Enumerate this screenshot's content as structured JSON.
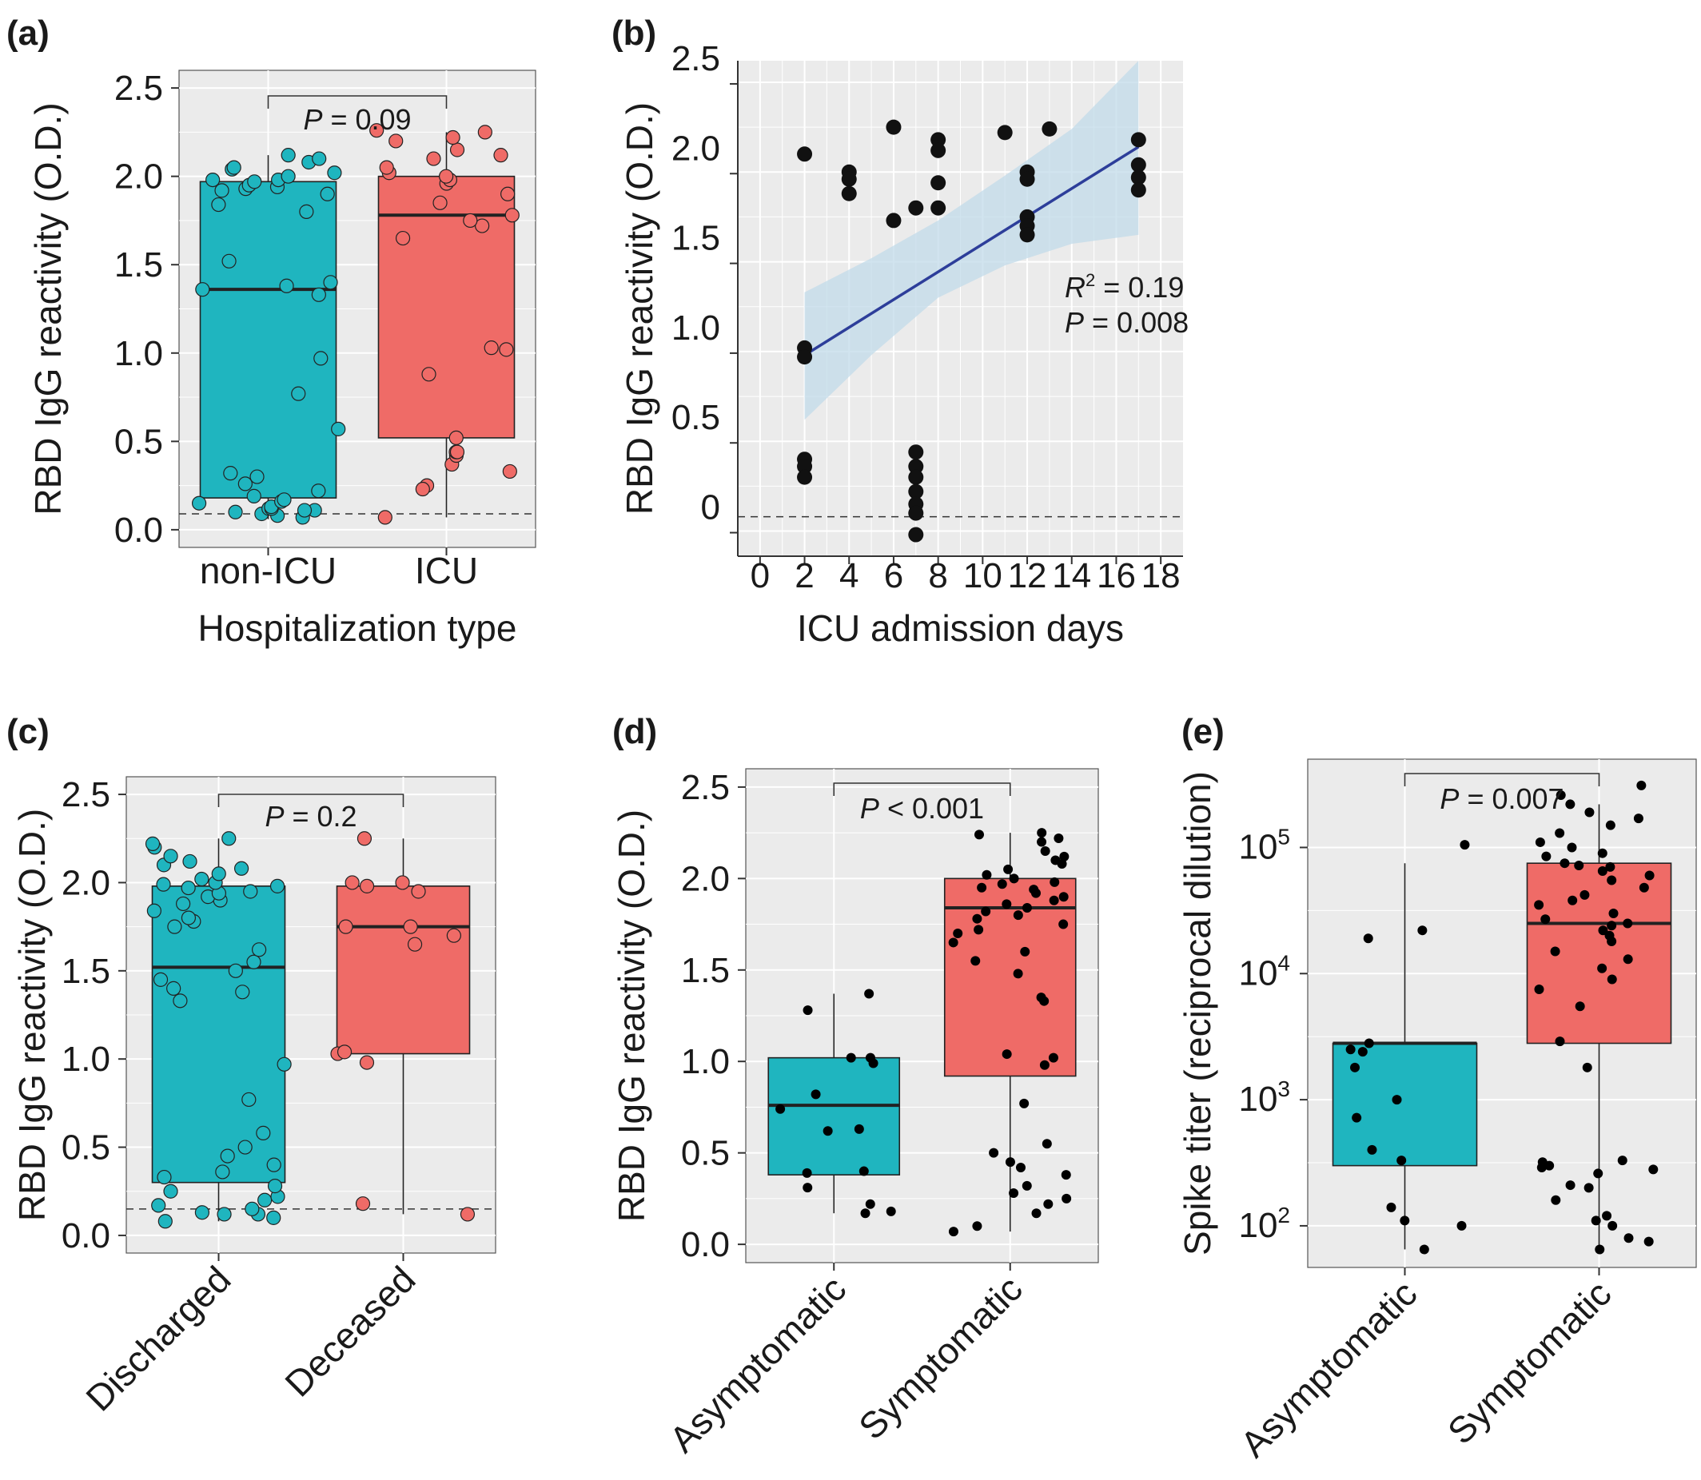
{
  "chart_data": [
    {
      "panel": "(a)",
      "type": "box",
      "ylabel": "RBD IgG reactivity (O.D.)",
      "xlabel": "Hospitalization type",
      "ylim": [
        -0.1,
        2.6
      ],
      "yticks": [
        "0.0",
        "0.5",
        "1.0",
        "1.5",
        "2.0",
        "2.5"
      ],
      "categories": [
        "non-ICU",
        "ICU"
      ],
      "colors": [
        "#1fb5bf",
        "#ef6b67"
      ],
      "boxes": [
        {
          "q1": 0.18,
          "median": 1.36,
          "q3": 1.97,
          "whisker_low": 0.06,
          "whisker_high": 2.12
        },
        {
          "q1": 0.52,
          "median": 1.78,
          "q3": 2.0,
          "whisker_low": 0.07,
          "whisker_high": 2.25
        }
      ],
      "points": [
        [
          0.07,
          0.08,
          0.09,
          0.1,
          0.11,
          0.11,
          0.12,
          0.12,
          0.13,
          0.15,
          0.16,
          0.17,
          0.19,
          0.22,
          0.26,
          0.3,
          0.32,
          0.57,
          0.77,
          0.97,
          1.33,
          1.36,
          1.38,
          1.4,
          1.52,
          1.8,
          1.84,
          1.9,
          1.92,
          1.93,
          1.94,
          1.95,
          1.97,
          1.98,
          1.98,
          2.0,
          2.02,
          2.04,
          2.05,
          2.08,
          2.1,
          2.12
        ],
        [
          0.07,
          0.25,
          0.23,
          0.33,
          0.37,
          0.42,
          0.44,
          0.44,
          0.52,
          0.88,
          1.02,
          1.03,
          1.65,
          1.72,
          1.75,
          1.78,
          1.85,
          1.9,
          1.96,
          1.98,
          2.0,
          2.02,
          2.05,
          2.1,
          2.12,
          2.15,
          2.2,
          2.22,
          2.25,
          2.26
        ]
      ],
      "cutoff": 0.09,
      "annotation": "= 0.09",
      "annotation_p": "P"
    },
    {
      "panel": "(b)",
      "type": "scatter",
      "ylabel": "RBD IgG reactivity (O.D.)",
      "xlabel": "ICU admission days",
      "xlim": [
        -1,
        19
      ],
      "ylim": [
        -0.14,
        2.62
      ],
      "xticks": [
        "0",
        "2",
        "4",
        "6",
        "8",
        "10",
        "12",
        "14",
        "16",
        "18"
      ],
      "yticks": [
        "0",
        "0.5",
        "1.0",
        "1.5",
        "2.0",
        "2.5"
      ],
      "points": [
        [
          2,
          2.1
        ],
        [
          2,
          1.02
        ],
        [
          2,
          0.97
        ],
        [
          2,
          0.4
        ],
        [
          2,
          0.36
        ],
        [
          2,
          0.3
        ],
        [
          4,
          2.0
        ],
        [
          4,
          1.96
        ],
        [
          4,
          1.88
        ],
        [
          6,
          2.25
        ],
        [
          6,
          1.73
        ],
        [
          7,
          1.8
        ],
        [
          7,
          0.44
        ],
        [
          7,
          0.36
        ],
        [
          7,
          0.3
        ],
        [
          7,
          0.22
        ],
        [
          7,
          0.15
        ],
        [
          7,
          0.1
        ],
        [
          7,
          -0.02
        ],
        [
          8,
          2.18
        ],
        [
          8,
          2.12
        ],
        [
          8,
          1.94
        ],
        [
          8,
          1.8
        ],
        [
          11,
          2.22
        ],
        [
          12,
          2.0
        ],
        [
          12,
          1.96
        ],
        [
          12,
          1.75
        ],
        [
          12,
          1.7
        ],
        [
          12,
          1.65
        ],
        [
          13,
          2.24
        ],
        [
          17,
          2.18
        ],
        [
          17,
          2.04
        ],
        [
          17,
          1.97
        ],
        [
          17,
          1.9
        ]
      ],
      "fit": {
        "x0": 2,
        "y0": 0.98,
        "x1": 17,
        "y1": 2.14
      },
      "ci_upper": [
        [
          2,
          1.33
        ],
        [
          5,
          1.52
        ],
        [
          8,
          1.73
        ],
        [
          11,
          1.98
        ],
        [
          14,
          2.24
        ],
        [
          17,
          2.62
        ]
      ],
      "ci_lower": [
        [
          2,
          0.62
        ],
        [
          5,
          0.98
        ],
        [
          8,
          1.3
        ],
        [
          11,
          1.48
        ],
        [
          14,
          1.6
        ],
        [
          17,
          1.65
        ]
      ],
      "cutoff": 0.08,
      "annotation_r2_label": "R",
      "annotation_r2_sup": "2",
      "annotation_r2": "= 0.19",
      "annotation_p_label": "P",
      "annotation_p": "= 0.008",
      "colors": {
        "points": "#111111",
        "fit": "#2d3e9a",
        "ci": "#c2dbea"
      }
    },
    {
      "panel": "(c)",
      "type": "box",
      "ylabel": "RBD IgG reactivity (O.D.)",
      "xlabel": "",
      "ylim": [
        -0.1,
        2.6
      ],
      "yticks": [
        "0.0",
        "0.5",
        "1.0",
        "1.5",
        "2.0",
        "2.5"
      ],
      "categories": [
        "Discharged",
        "Deceased"
      ],
      "colors": [
        "#1fb5bf",
        "#ef6b67"
      ],
      "boxes": [
        {
          "q1": 0.3,
          "median": 1.52,
          "q3": 1.98,
          "whisker_low": 0.08,
          "whisker_high": 2.25
        },
        {
          "q1": 1.03,
          "median": 1.75,
          "q3": 1.98,
          "whisker_low": 0.12,
          "whisker_high": 2.25
        }
      ],
      "points": [
        [
          0.08,
          0.1,
          0.12,
          0.12,
          0.13,
          0.15,
          0.17,
          0.2,
          0.22,
          0.25,
          0.28,
          0.33,
          0.36,
          0.4,
          0.45,
          0.5,
          0.58,
          0.77,
          0.97,
          1.33,
          1.38,
          1.4,
          1.45,
          1.5,
          1.55,
          1.62,
          1.75,
          1.78,
          1.8,
          1.84,
          1.88,
          1.9,
          1.92,
          1.94,
          1.95,
          1.97,
          1.98,
          1.99,
          2.0,
          2.02,
          2.05,
          2.08,
          2.1,
          2.12,
          2.15,
          2.2,
          2.22,
          2.25
        ],
        [
          0.12,
          0.18,
          0.98,
          1.03,
          1.04,
          1.65,
          1.7,
          1.75,
          1.75,
          1.95,
          1.98,
          2.0,
          2.0,
          2.25
        ]
      ],
      "cutoff": 0.15,
      "annotation": "= 0.2",
      "annotation_p": "P"
    },
    {
      "panel": "(d)",
      "type": "box",
      "ylabel": "RBD IgG reactivity (O.D.)",
      "xlabel": "",
      "ylim": [
        -0.1,
        2.6
      ],
      "yticks": [
        "0.0",
        "0.5",
        "1.0",
        "1.5",
        "2.0",
        "2.5"
      ],
      "categories": [
        "Asymptomatic",
        "Symptomatic"
      ],
      "colors": [
        "#1fb5bf",
        "#ef6b67"
      ],
      "boxes": [
        {
          "q1": 0.38,
          "median": 0.76,
          "q3": 1.02,
          "whisker_low": 0.17,
          "whisker_high": 1.37
        },
        {
          "q1": 0.92,
          "median": 1.84,
          "q3": 2.0,
          "whisker_low": 0.07,
          "whisker_high": 2.25
        }
      ],
      "points": [
        [
          0.17,
          0.18,
          0.22,
          0.31,
          0.39,
          0.4,
          0.62,
          0.63,
          0.74,
          0.82,
          0.99,
          1.02,
          1.02,
          1.28,
          1.37
        ],
        [
          0.07,
          0.1,
          0.17,
          0.22,
          0.25,
          0.28,
          0.32,
          0.38,
          0.42,
          0.45,
          0.5,
          0.55,
          0.77,
          0.98,
          1.02,
          1.04,
          1.33,
          1.35,
          1.48,
          1.55,
          1.6,
          1.65,
          1.7,
          1.72,
          1.75,
          1.78,
          1.8,
          1.82,
          1.84,
          1.86,
          1.88,
          1.9,
          1.92,
          1.94,
          1.95,
          1.97,
          1.98,
          2.0,
          2.02,
          2.05,
          2.08,
          2.1,
          2.12,
          2.15,
          2.2,
          2.22,
          2.24,
          2.25
        ]
      ],
      "annotation": "< 0.001",
      "annotation_p": "P"
    },
    {
      "panel": "(e)",
      "type": "box",
      "scale": "log",
      "ylabel": "Spike titer (reciprocal dilution)",
      "xlabel": "",
      "ylim_log10": [
        1.67,
        5.7
      ],
      "yticks_log10": [
        2,
        3,
        4,
        5
      ],
      "ytick_base": "10",
      "ytick_exps": [
        "2",
        "3",
        "4",
        "5"
      ],
      "categories": [
        "Asymptomatic",
        "Symptomatic"
      ],
      "colors": [
        "#1fb5bf",
        "#ef6b67"
      ],
      "boxes": [
        {
          "q1": 300,
          "median": 2800,
          "q3": 2800,
          "whisker_low": 65,
          "whisker_high": 75000
        },
        {
          "q1": 2800,
          "median": 25000,
          "q3": 75000,
          "whisker_low": 65,
          "whisker_high": 220000
        }
      ],
      "points": [
        [
          65,
          100,
          110,
          140,
          330,
          400,
          720,
          1000,
          1800,
          2400,
          2500,
          2800,
          19000,
          22000,
          105000
        ],
        [
          65,
          75,
          80,
          100,
          110,
          120,
          160,
          200,
          210,
          260,
          280,
          290,
          300,
          320,
          330,
          1800,
          2900,
          5500,
          7500,
          9000,
          11000,
          13000,
          15000,
          18000,
          20000,
          22000,
          24000,
          25000,
          27000,
          30000,
          35000,
          38000,
          42000,
          48000,
          55000,
          60000,
          65000,
          70000,
          72000,
          75000,
          85000,
          90000,
          100000,
          110000,
          130000,
          150000,
          170000,
          190000,
          220000,
          260000,
          310000
        ]
      ],
      "annotation": "= 0.007",
      "annotation_p": "P"
    }
  ]
}
